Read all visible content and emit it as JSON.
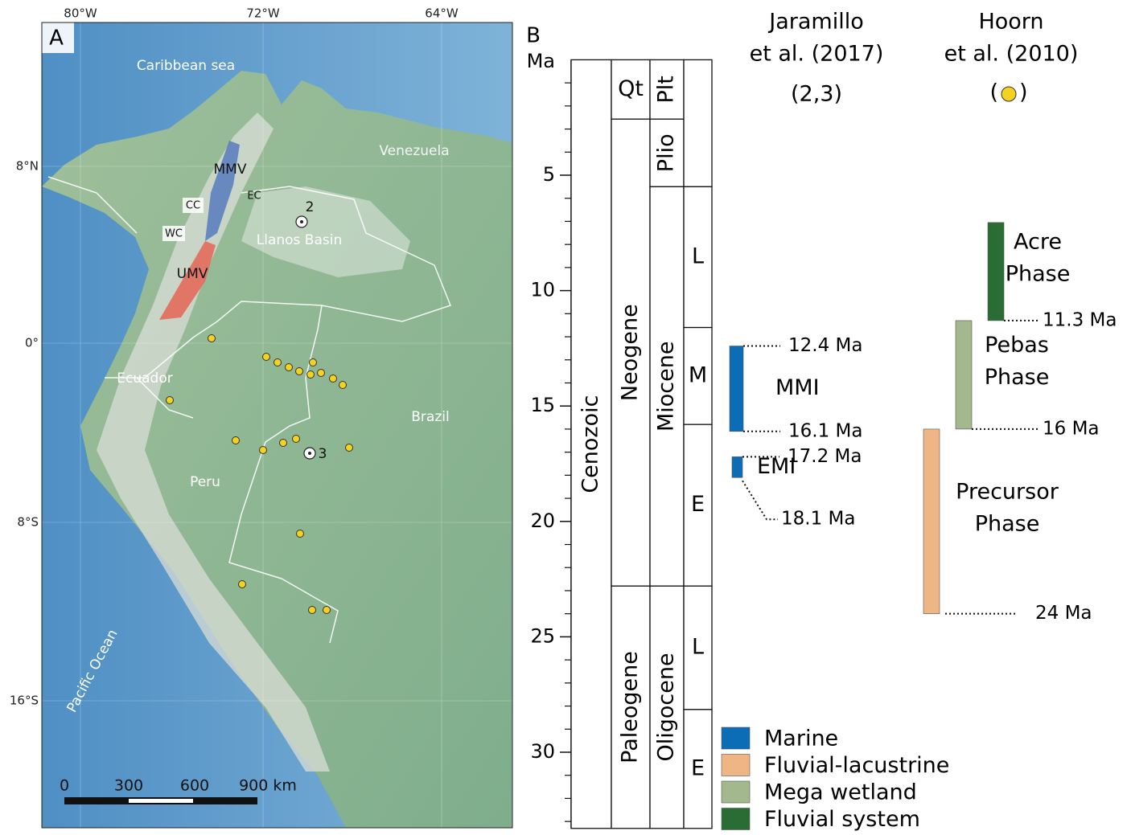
{
  "map": {
    "panel_label": "A",
    "lon_labels": [
      "80°W",
      "72°W",
      "64°W"
    ],
    "lat_labels": [
      "8°N",
      "0°",
      "8°S",
      "16°S"
    ],
    "places": [
      "Caribbean sea",
      "Venezuela",
      "MMV",
      "EC",
      "CC",
      "WC",
      "Llanos Basin",
      "UMV",
      "Ecuador",
      "Brazil",
      "Peru",
      "Pacific Ocean"
    ],
    "site_labels": [
      "2",
      "3"
    ],
    "scale_labels": [
      "0",
      "300",
      "600",
      "900 km"
    ]
  },
  "chart_data": {
    "type": "timescale",
    "panel_label": "B",
    "y_label": "Ma",
    "ylim": [
      0,
      33.3
    ],
    "yticks": [
      5,
      10,
      15,
      20,
      25,
      30
    ],
    "minor_yticks": [
      1,
      2,
      3,
      4,
      6,
      7,
      8,
      9,
      11,
      12,
      13,
      14,
      16,
      17,
      18,
      19,
      21,
      22,
      23,
      24,
      26,
      27,
      28,
      29,
      31,
      32,
      33
    ],
    "columns": [
      {
        "units": [
          {
            "label": "Cenozoic",
            "range": [
              0,
              33.3
            ]
          }
        ]
      },
      {
        "units": [
          {
            "label": "Qt",
            "range": [
              0,
              2.57
            ]
          },
          {
            "label": "Neogene",
            "range": [
              2.57,
              22.8
            ]
          },
          {
            "label": "Paleogene",
            "range": [
              22.8,
              33.3
            ]
          }
        ]
      },
      {
        "units": [
          {
            "label": "Plt",
            "range": [
              0,
              2.57
            ]
          },
          {
            "label": "Plio",
            "range": [
              2.57,
              5.5
            ]
          },
          {
            "label": "Miocene",
            "range": [
              5.5,
              22.8
            ]
          },
          {
            "label": "Oligocene",
            "range": [
              22.8,
              33.3
            ]
          }
        ]
      },
      {
        "units": [
          {
            "label": null,
            "range": [
              0,
              5.5
            ]
          },
          {
            "label": "L",
            "range": [
              5.5,
              11.6
            ]
          },
          {
            "label": "M",
            "range": [
              11.6,
              15.8
            ]
          },
          {
            "label": "E",
            "range": [
              15.8,
              22.8
            ]
          },
          {
            "label": "L",
            "range": [
              22.8,
              28.15
            ]
          },
          {
            "label": "E",
            "range": [
              28.15,
              33.3
            ]
          }
        ]
      }
    ],
    "sources": [
      {
        "heading": [
          "Jaramillo",
          "et al. (2017)"
        ],
        "note": [
          "(2,3)"
        ]
      },
      {
        "heading": [
          "Hoorn",
          "et al. (2010)"
        ],
        "note": [
          "(",
          ")"
        ]
      }
    ],
    "series": [
      {
        "name": "Marine",
        "color": "#0b6db5",
        "intervals": [
          {
            "label": [
              "MMI"
            ],
            "values": [
              12.4,
              16.1
            ],
            "value_labels": [
              "12.4 Ma",
              "16.1 Ma"
            ]
          },
          {
            "label": [
              "EMI"
            ],
            "values": [
              17.2,
              18.1
            ],
            "value_labels": [
              "17.2 Ma",
              "18.1 Ma"
            ]
          }
        ]
      },
      {
        "name": "Fluvial-lacustrine",
        "color": "#f0b585",
        "intervals": [
          {
            "label": [
              "Precursor",
              "Phase"
            ],
            "values": [
              16,
              24
            ],
            "value_labels": [
              null,
              "24 Ma"
            ]
          }
        ]
      },
      {
        "name": "Mega wetland",
        "color": "#a3b88c",
        "intervals": [
          {
            "label": [
              "Pebas",
              "Phase"
            ],
            "values": [
              11.3,
              16
            ],
            "value_labels": [
              null,
              "16 Ma"
            ]
          }
        ]
      },
      {
        "name": "Fluvial system",
        "color": "#2a6d34",
        "intervals": [
          {
            "label": [
              "Acre",
              "Phase"
            ],
            "values": [
              7.05,
              11.3
            ],
            "value_labels": [
              null,
              "11.3 Ma"
            ]
          }
        ]
      }
    ]
  }
}
